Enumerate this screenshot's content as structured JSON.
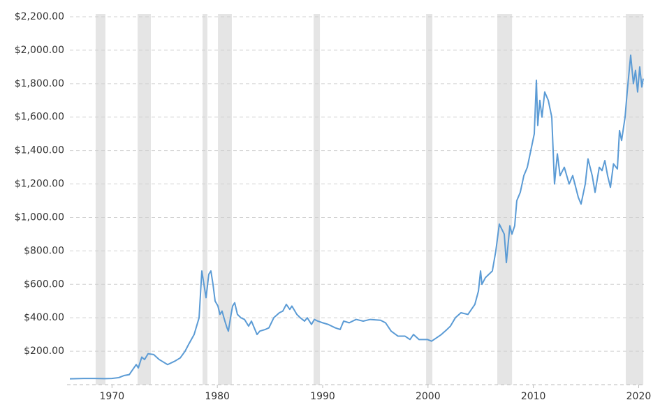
{
  "chart_data": {
    "type": "line",
    "color": "#5b9bd5",
    "shade_color": "#e5e5e5",
    "grid": true,
    "xlim": [
      1966,
      2020.5
    ],
    "ylim": [
      0,
      2200
    ],
    "xticks": [
      1970,
      1980,
      1990,
      2000,
      2010,
      2020
    ],
    "yticks": [
      {
        "value": 200,
        "label": "$200.00"
      },
      {
        "value": 400,
        "label": "$400.00"
      },
      {
        "value": 600,
        "label": "$600.00"
      },
      {
        "value": 800,
        "label": "$800.00"
      },
      {
        "value": 1000,
        "label": "$1,000.00"
      },
      {
        "value": 1200,
        "label": "$1,200.00"
      },
      {
        "value": 1400,
        "label": "$1,400.00"
      },
      {
        "value": 1600,
        "label": "$1,600.00"
      },
      {
        "value": 1800,
        "label": "$1,800.00"
      },
      {
        "value": 2000,
        "label": "$2,000.00"
      },
      {
        "value": 2200,
        "label": "$2,200.00"
      }
    ],
    "shaded_periods": [
      [
        1968.45,
        1969.38
      ],
      [
        1972.43,
        1973.69
      ],
      [
        1978.6,
        1979.06
      ],
      [
        1980.06,
        1981.38
      ],
      [
        1989.14,
        1989.74
      ],
      [
        1999.82,
        2000.42
      ],
      [
        2006.58,
        2007.98
      ],
      [
        2018.78,
        2020.44
      ]
    ],
    "x": [
      1966.0,
      1967.33,
      1968.32,
      1969.32,
      1969.98,
      1970.64,
      1971.17,
      1971.64,
      1971.97,
      1972.3,
      1972.5,
      1972.83,
      1973.09,
      1973.43,
      1973.96,
      1974.49,
      1975.28,
      1975.95,
      1976.48,
      1976.94,
      1977.27,
      1977.8,
      1978.27,
      1978.53,
      1978.73,
      1978.93,
      1979.19,
      1979.39,
      1979.59,
      1979.79,
      1980.06,
      1980.25,
      1980.45,
      1980.72,
      1980.92,
      1981.05,
      1981.25,
      1981.45,
      1981.65,
      1981.91,
      1982.24,
      1982.58,
      1982.97,
      1983.24,
      1983.77,
      1984.03,
      1984.56,
      1984.9,
      1985.36,
      1985.89,
      1986.22,
      1986.55,
      1986.88,
      1987.08,
      1987.55,
      1987.88,
      1988.28,
      1988.54,
      1988.94,
      1989.21,
      1989.54,
      1990.0,
      1990.53,
      1991.19,
      1991.66,
      1991.99,
      1992.52,
      1993.18,
      1993.85,
      1994.51,
      1995.5,
      1995.97,
      1996.5,
      1997.16,
      1997.82,
      1998.29,
      1998.62,
      1999.15,
      1999.95,
      2000.34,
      2000.81,
      2001.27,
      2001.8,
      2002.13,
      2002.6,
      2003.13,
      2003.79,
      2004.45,
      2004.79,
      2004.99,
      2005.12,
      2005.45,
      2006.11,
      2006.44,
      2006.77,
      2007.24,
      2007.44,
      2007.77,
      2007.97,
      2008.23,
      2008.43,
      2008.76,
      2009.1,
      2009.43,
      2009.76,
      2010.09,
      2010.29,
      2010.42,
      2010.62,
      2010.82,
      2011.08,
      2011.42,
      2011.75,
      2012.01,
      2012.28,
      2012.54,
      2012.94,
      2013.4,
      2013.74,
      2014.27,
      2014.53,
      2014.93,
      2015.19,
      2015.59,
      2015.86,
      2016.26,
      2016.52,
      2016.79,
      2017.05,
      2017.32,
      2017.61,
      2017.98,
      2018.18,
      2018.38,
      2018.71,
      2018.91,
      2019.24,
      2019.5,
      2019.7,
      2019.9,
      2020.1,
      2020.3,
      2020.43
    ],
    "values": [
      35,
      37,
      37,
      36,
      37,
      42,
      55,
      60,
      90,
      120,
      100,
      165,
      150,
      185,
      180,
      150,
      120,
      140,
      160,
      200,
      240,
      300,
      400,
      680,
      600,
      520,
      660,
      680,
      600,
      500,
      470,
      420,
      440,
      380,
      340,
      320,
      400,
      470,
      490,
      420,
      400,
      390,
      350,
      380,
      300,
      320,
      330,
      340,
      400,
      430,
      440,
      480,
      450,
      470,
      420,
      400,
      380,
      400,
      360,
      390,
      380,
      370,
      360,
      340,
      330,
      380,
      370,
      390,
      380,
      390,
      385,
      370,
      320,
      290,
      290,
      270,
      300,
      270,
      270,
      260,
      280,
      300,
      330,
      350,
      400,
      430,
      420,
      480,
      560,
      680,
      600,
      640,
      680,
      800,
      960,
      900,
      730,
      950,
      900,
      950,
      1100,
      1150,
      1250,
      1300,
      1400,
      1500,
      1820,
      1550,
      1700,
      1600,
      1750,
      1700,
      1600,
      1200,
      1380,
      1250,
      1300,
      1200,
      1250,
      1120,
      1080,
      1200,
      1350,
      1250,
      1150,
      1300,
      1280,
      1340,
      1250,
      1180,
      1320,
      1290,
      1520,
      1460,
      1600,
      1750,
      1970,
      1800,
      1880,
      1750,
      1900,
      1780,
      1830
    ]
  }
}
